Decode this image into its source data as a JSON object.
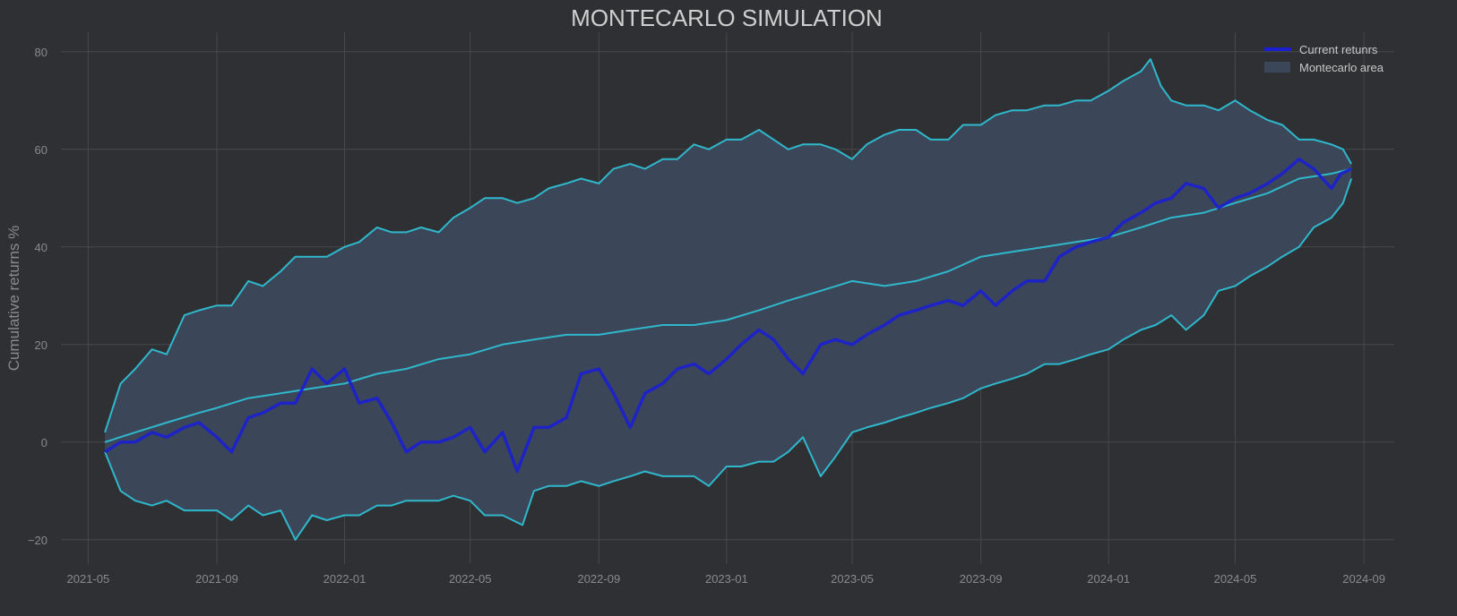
{
  "chart_data": {
    "type": "line",
    "title": "MONTECARLO SIMULATION",
    "xlabel": "",
    "ylabel": "Cumulative returns %",
    "ylim": [
      -25,
      84
    ],
    "xlim": [
      "2021-04-05",
      "2024-09-30"
    ],
    "grid": true,
    "legend_placement": "top-right",
    "x_ticks": [
      "2021-05",
      "2021-09",
      "2022-01",
      "2022-05",
      "2022-09",
      "2023-01",
      "2023-05",
      "2023-09",
      "2024-01",
      "2024-05",
      "2024-09"
    ],
    "y_ticks": [
      -20,
      0,
      20,
      40,
      60,
      80
    ],
    "y_tick_labels": [
      "−20",
      "0",
      "20",
      "40",
      "60",
      "80"
    ],
    "colors": {
      "background": "#2f3033",
      "grid": "#47484c",
      "current": "#1a1fd0",
      "band": "#2fb8cc",
      "area": "#3c4659"
    },
    "legend": [
      {
        "label": "Current retunrs",
        "kind": "line",
        "color": "#1a1fd0"
      },
      {
        "label": "Montecarlo area",
        "kind": "patch",
        "color": "#3c4659"
      }
    ],
    "upper": [
      [
        "2021-05-17",
        2
      ],
      [
        "2021-06-01",
        12
      ],
      [
        "2021-06-15",
        15
      ],
      [
        "2021-07-01",
        19
      ],
      [
        "2021-07-15",
        18
      ],
      [
        "2021-08-01",
        26
      ],
      [
        "2021-08-15",
        27
      ],
      [
        "2021-09-01",
        28
      ],
      [
        "2021-09-15",
        28
      ],
      [
        "2021-10-01",
        33
      ],
      [
        "2021-10-15",
        32
      ],
      [
        "2021-11-01",
        35
      ],
      [
        "2021-11-15",
        38
      ],
      [
        "2021-12-01",
        38
      ],
      [
        "2021-12-15",
        38
      ],
      [
        "2022-01-01",
        40
      ],
      [
        "2022-01-15",
        41
      ],
      [
        "2022-02-01",
        44
      ],
      [
        "2022-02-15",
        43
      ],
      [
        "2022-03-01",
        43
      ],
      [
        "2022-03-15",
        44
      ],
      [
        "2022-04-01",
        43
      ],
      [
        "2022-04-15",
        46
      ],
      [
        "2022-05-01",
        48
      ],
      [
        "2022-05-15",
        50
      ],
      [
        "2022-06-01",
        50
      ],
      [
        "2022-06-15",
        49
      ],
      [
        "2022-07-01",
        50
      ],
      [
        "2022-07-15",
        52
      ],
      [
        "2022-08-01",
        53
      ],
      [
        "2022-08-15",
        54
      ],
      [
        "2022-09-01",
        53
      ],
      [
        "2022-09-15",
        56
      ],
      [
        "2022-10-01",
        57
      ],
      [
        "2022-10-15",
        56
      ],
      [
        "2022-11-01",
        58
      ],
      [
        "2022-11-15",
        58
      ],
      [
        "2022-12-01",
        61
      ],
      [
        "2022-12-15",
        60
      ],
      [
        "2023-01-01",
        62
      ],
      [
        "2023-01-15",
        62
      ],
      [
        "2023-02-01",
        64
      ],
      [
        "2023-02-15",
        62
      ],
      [
        "2023-03-01",
        60
      ],
      [
        "2023-03-15",
        61
      ],
      [
        "2023-04-01",
        61
      ],
      [
        "2023-04-15",
        60
      ],
      [
        "2023-05-01",
        58
      ],
      [
        "2023-05-15",
        61
      ],
      [
        "2023-06-01",
        63
      ],
      [
        "2023-06-15",
        64
      ],
      [
        "2023-07-01",
        64
      ],
      [
        "2023-07-15",
        62
      ],
      [
        "2023-08-01",
        62
      ],
      [
        "2023-08-15",
        65
      ],
      [
        "2023-09-01",
        65
      ],
      [
        "2023-09-15",
        67
      ],
      [
        "2023-10-01",
        68
      ],
      [
        "2023-10-15",
        68
      ],
      [
        "2023-11-01",
        69
      ],
      [
        "2023-11-15",
        69
      ],
      [
        "2023-12-01",
        70
      ],
      [
        "2023-12-15",
        70
      ],
      [
        "2024-01-01",
        72
      ],
      [
        "2024-01-15",
        74
      ],
      [
        "2024-02-01",
        76
      ],
      [
        "2024-02-10",
        78.5
      ],
      [
        "2024-02-20",
        73
      ],
      [
        "2024-03-01",
        70
      ],
      [
        "2024-03-15",
        69
      ],
      [
        "2024-04-01",
        69
      ],
      [
        "2024-04-15",
        68
      ],
      [
        "2024-05-01",
        70
      ],
      [
        "2024-05-15",
        68
      ],
      [
        "2024-06-01",
        66
      ],
      [
        "2024-06-15",
        65
      ],
      [
        "2024-07-01",
        62
      ],
      [
        "2024-07-15",
        62
      ],
      [
        "2024-08-01",
        61
      ],
      [
        "2024-08-12",
        60
      ],
      [
        "2024-08-20",
        57
      ]
    ],
    "mean": [
      [
        "2021-05-17",
        0
      ],
      [
        "2021-06-15",
        2
      ],
      [
        "2021-07-15",
        4
      ],
      [
        "2021-08-15",
        6
      ],
      [
        "2021-09-01",
        7
      ],
      [
        "2021-10-01",
        9
      ],
      [
        "2021-11-01",
        10
      ],
      [
        "2021-12-01",
        11
      ],
      [
        "2022-01-01",
        12
      ],
      [
        "2022-02-01",
        14
      ],
      [
        "2022-03-01",
        15
      ],
      [
        "2022-04-01",
        17
      ],
      [
        "2022-05-01",
        18
      ],
      [
        "2022-06-01",
        20
      ],
      [
        "2022-07-01",
        21
      ],
      [
        "2022-08-01",
        22
      ],
      [
        "2022-09-01",
        22
      ],
      [
        "2022-10-01",
        23
      ],
      [
        "2022-11-01",
        24
      ],
      [
        "2022-12-01",
        24
      ],
      [
        "2023-01-01",
        25
      ],
      [
        "2023-02-01",
        27
      ],
      [
        "2023-03-01",
        29
      ],
      [
        "2023-04-01",
        31
      ],
      [
        "2023-05-01",
        33
      ],
      [
        "2023-06-01",
        32
      ],
      [
        "2023-07-01",
        33
      ],
      [
        "2023-08-01",
        35
      ],
      [
        "2023-09-01",
        38
      ],
      [
        "2023-10-01",
        39
      ],
      [
        "2023-11-01",
        40
      ],
      [
        "2023-12-01",
        41
      ],
      [
        "2024-01-01",
        42
      ],
      [
        "2024-02-01",
        44
      ],
      [
        "2024-03-01",
        46
      ],
      [
        "2024-04-01",
        47
      ],
      [
        "2024-05-01",
        49
      ],
      [
        "2024-06-01",
        51
      ],
      [
        "2024-07-01",
        54
      ],
      [
        "2024-08-01",
        55
      ],
      [
        "2024-08-20",
        56
      ]
    ],
    "lower": [
      [
        "2021-05-17",
        -2
      ],
      [
        "2021-06-01",
        -10
      ],
      [
        "2021-06-15",
        -12
      ],
      [
        "2021-07-01",
        -13
      ],
      [
        "2021-07-15",
        -12
      ],
      [
        "2021-08-01",
        -14
      ],
      [
        "2021-08-15",
        -14
      ],
      [
        "2021-09-01",
        -14
      ],
      [
        "2021-09-15",
        -16
      ],
      [
        "2021-10-01",
        -13
      ],
      [
        "2021-10-15",
        -15
      ],
      [
        "2021-11-01",
        -14
      ],
      [
        "2021-11-15",
        -20
      ],
      [
        "2021-12-01",
        -15
      ],
      [
        "2021-12-15",
        -16
      ],
      [
        "2022-01-01",
        -15
      ],
      [
        "2022-01-15",
        -15
      ],
      [
        "2022-02-01",
        -13
      ],
      [
        "2022-02-15",
        -13
      ],
      [
        "2022-03-01",
        -12
      ],
      [
        "2022-03-15",
        -12
      ],
      [
        "2022-04-01",
        -12
      ],
      [
        "2022-04-15",
        -11
      ],
      [
        "2022-05-01",
        -12
      ],
      [
        "2022-05-15",
        -15
      ],
      [
        "2022-06-01",
        -15
      ],
      [
        "2022-06-20",
        -17
      ],
      [
        "2022-07-01",
        -10
      ],
      [
        "2022-07-15",
        -9
      ],
      [
        "2022-08-01",
        -9
      ],
      [
        "2022-08-15",
        -8
      ],
      [
        "2022-09-01",
        -9
      ],
      [
        "2022-09-15",
        -8
      ],
      [
        "2022-10-01",
        -7
      ],
      [
        "2022-10-15",
        -6
      ],
      [
        "2022-11-01",
        -7
      ],
      [
        "2022-11-15",
        -7
      ],
      [
        "2022-12-01",
        -7
      ],
      [
        "2022-12-15",
        -9
      ],
      [
        "2023-01-01",
        -5
      ],
      [
        "2023-01-15",
        -5
      ],
      [
        "2023-02-01",
        -4
      ],
      [
        "2023-02-15",
        -4
      ],
      [
        "2023-03-01",
        -2
      ],
      [
        "2023-03-15",
        1
      ],
      [
        "2023-04-01",
        -7
      ],
      [
        "2023-04-15",
        -3
      ],
      [
        "2023-05-01",
        2
      ],
      [
        "2023-05-15",
        3
      ],
      [
        "2023-06-01",
        4
      ],
      [
        "2023-06-15",
        5
      ],
      [
        "2023-07-01",
        6
      ],
      [
        "2023-07-15",
        7
      ],
      [
        "2023-08-01",
        8
      ],
      [
        "2023-08-15",
        9
      ],
      [
        "2023-09-01",
        11
      ],
      [
        "2023-09-15",
        12
      ],
      [
        "2023-10-01",
        13
      ],
      [
        "2023-10-15",
        14
      ],
      [
        "2023-11-01",
        16
      ],
      [
        "2023-11-15",
        16
      ],
      [
        "2023-12-01",
        17
      ],
      [
        "2023-12-15",
        18
      ],
      [
        "2024-01-01",
        19
      ],
      [
        "2024-01-15",
        21
      ],
      [
        "2024-02-01",
        23
      ],
      [
        "2024-02-15",
        24
      ],
      [
        "2024-03-01",
        26
      ],
      [
        "2024-03-15",
        23
      ],
      [
        "2024-04-01",
        26
      ],
      [
        "2024-04-15",
        31
      ],
      [
        "2024-05-01",
        32
      ],
      [
        "2024-05-15",
        34
      ],
      [
        "2024-06-01",
        36
      ],
      [
        "2024-06-15",
        38
      ],
      [
        "2024-07-01",
        40
      ],
      [
        "2024-07-15",
        44
      ],
      [
        "2024-08-01",
        46
      ],
      [
        "2024-08-12",
        49
      ],
      [
        "2024-08-20",
        54
      ]
    ],
    "current": [
      [
        "2021-05-17",
        -2
      ],
      [
        "2021-06-01",
        0
      ],
      [
        "2021-06-15",
        0
      ],
      [
        "2021-07-01",
        2
      ],
      [
        "2021-07-15",
        1
      ],
      [
        "2021-08-01",
        3
      ],
      [
        "2021-08-15",
        4
      ],
      [
        "2021-09-01",
        1
      ],
      [
        "2021-09-15",
        -2
      ],
      [
        "2021-10-01",
        5
      ],
      [
        "2021-10-15",
        6
      ],
      [
        "2021-11-01",
        8
      ],
      [
        "2021-11-15",
        8
      ],
      [
        "2021-12-01",
        15
      ],
      [
        "2021-12-15",
        12
      ],
      [
        "2022-01-01",
        15
      ],
      [
        "2022-01-15",
        8
      ],
      [
        "2022-02-01",
        9
      ],
      [
        "2022-02-15",
        4
      ],
      [
        "2022-03-01",
        -2
      ],
      [
        "2022-03-15",
        0
      ],
      [
        "2022-04-01",
        0
      ],
      [
        "2022-04-15",
        1
      ],
      [
        "2022-05-01",
        3
      ],
      [
        "2022-05-15",
        -2
      ],
      [
        "2022-06-01",
        2
      ],
      [
        "2022-06-15",
        -6
      ],
      [
        "2022-07-01",
        3
      ],
      [
        "2022-07-15",
        3
      ],
      [
        "2022-08-01",
        5
      ],
      [
        "2022-08-15",
        14
      ],
      [
        "2022-09-01",
        15
      ],
      [
        "2022-09-15",
        10
      ],
      [
        "2022-10-01",
        3
      ],
      [
        "2022-10-15",
        10
      ],
      [
        "2022-11-01",
        12
      ],
      [
        "2022-11-15",
        15
      ],
      [
        "2022-12-01",
        16
      ],
      [
        "2022-12-15",
        14
      ],
      [
        "2023-01-01",
        17
      ],
      [
        "2023-01-15",
        20
      ],
      [
        "2023-02-01",
        23
      ],
      [
        "2023-02-15",
        21
      ],
      [
        "2023-03-01",
        17
      ],
      [
        "2023-03-15",
        14
      ],
      [
        "2023-04-01",
        20
      ],
      [
        "2023-04-15",
        21
      ],
      [
        "2023-05-01",
        20
      ],
      [
        "2023-05-15",
        22
      ],
      [
        "2023-06-01",
        24
      ],
      [
        "2023-06-15",
        26
      ],
      [
        "2023-07-01",
        27
      ],
      [
        "2023-07-15",
        28
      ],
      [
        "2023-08-01",
        29
      ],
      [
        "2023-08-15",
        28
      ],
      [
        "2023-09-01",
        31
      ],
      [
        "2023-09-15",
        28
      ],
      [
        "2023-10-01",
        31
      ],
      [
        "2023-10-15",
        33
      ],
      [
        "2023-11-01",
        33
      ],
      [
        "2023-11-15",
        38
      ],
      [
        "2023-12-01",
        40
      ],
      [
        "2023-12-15",
        41
      ],
      [
        "2024-01-01",
        42
      ],
      [
        "2024-01-15",
        45
      ],
      [
        "2024-02-01",
        47
      ],
      [
        "2024-02-15",
        49
      ],
      [
        "2024-03-01",
        50
      ],
      [
        "2024-03-15",
        53
      ],
      [
        "2024-04-01",
        52
      ],
      [
        "2024-04-15",
        48
      ],
      [
        "2024-05-01",
        50
      ],
      [
        "2024-05-15",
        51
      ],
      [
        "2024-06-01",
        53
      ],
      [
        "2024-06-15",
        55
      ],
      [
        "2024-07-01",
        58
      ],
      [
        "2024-07-15",
        56
      ],
      [
        "2024-08-01",
        52
      ],
      [
        "2024-08-10",
        55
      ],
      [
        "2024-08-20",
        56
      ]
    ]
  }
}
